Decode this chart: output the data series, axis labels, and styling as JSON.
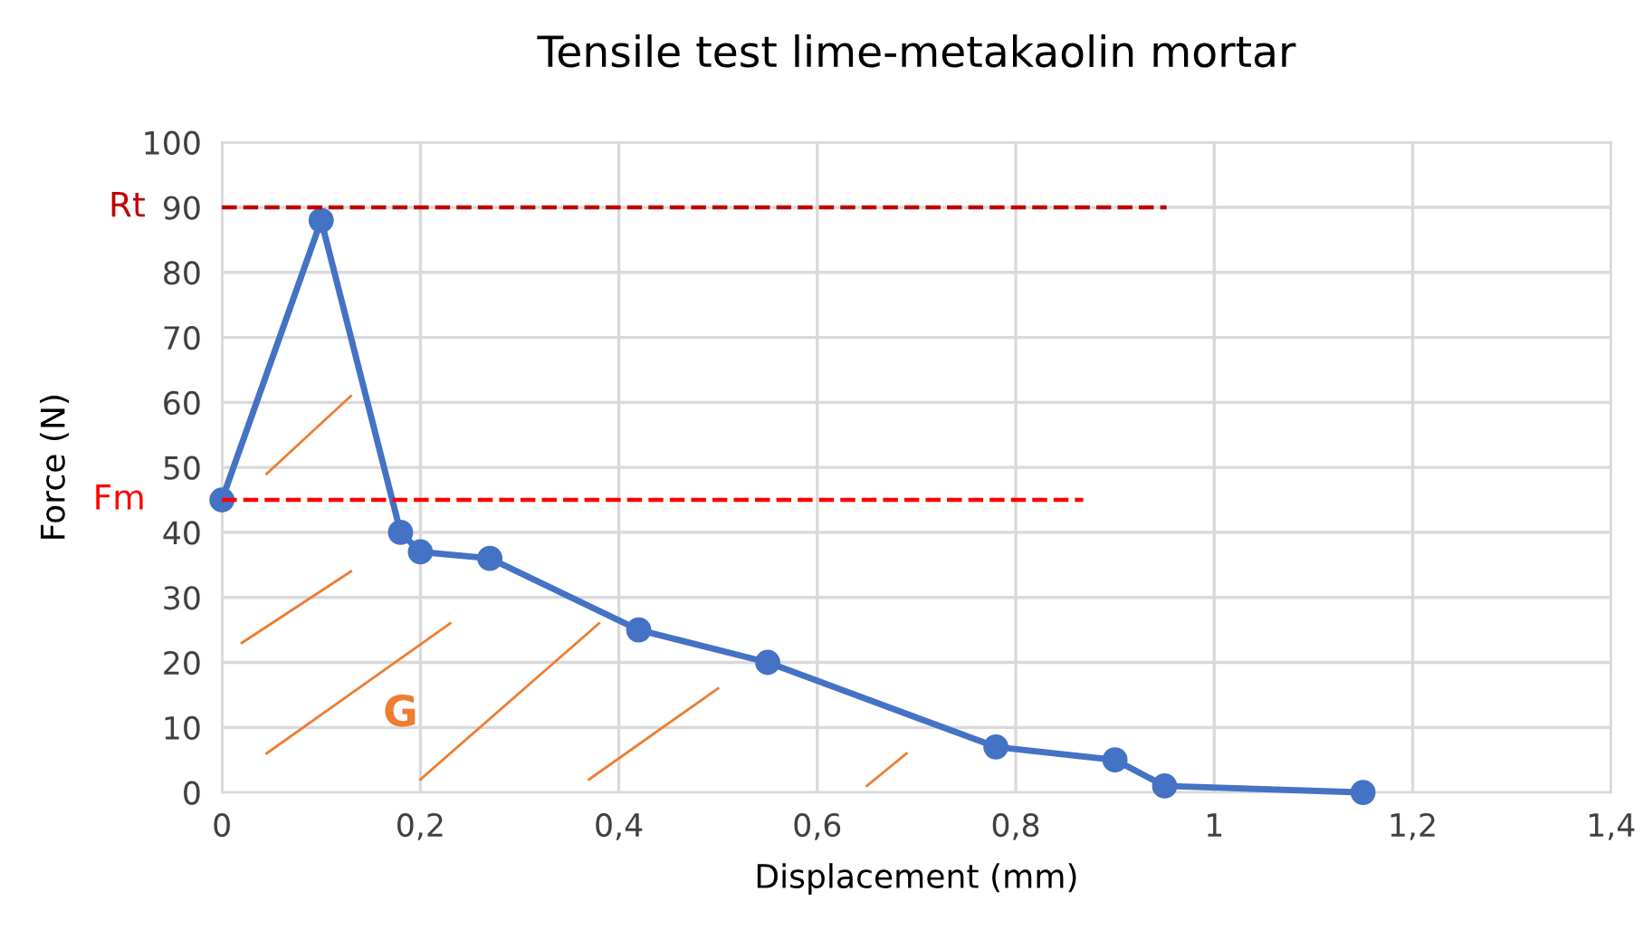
{
  "chart_data": {
    "type": "line",
    "title": "Tensile test lime-metakaolin mortar",
    "xlabel": "Displacement (mm)",
    "ylabel": "Force (N)",
    "x": [
      0,
      0.1,
      0.18,
      0.2,
      0.27,
      0.42,
      0.55,
      0.78,
      0.9,
      0.95,
      1.15
    ],
    "series": [
      {
        "color": "#4472c4",
        "values": [
          45,
          88,
          40,
          37,
          36,
          25,
          20,
          7,
          5,
          1,
          0
        ]
      }
    ],
    "xlim": [
      0,
      1.4
    ],
    "xticks": [
      0,
      {
        "value": 0.2,
        "label": "0,2"
      },
      {
        "value": 0.4,
        "label": "0,4"
      },
      {
        "value": 0.6,
        "label": "0,6"
      },
      {
        "value": 0.8,
        "label": "0,8"
      },
      1,
      {
        "value": 1.2,
        "label": "1,2"
      },
      {
        "value": 1.4,
        "label": "1,4"
      }
    ],
    "ylim": [
      0,
      100
    ],
    "yticks": [
      0,
      10,
      20,
      30,
      40,
      50,
      60,
      70,
      80,
      90,
      100
    ],
    "ref_lines": [
      {
        "axis": "y",
        "value": 90,
        "label": "Rt",
        "color": "#c00000",
        "line_style": "dashed"
      },
      {
        "axis": "y",
        "value": 45,
        "label": "Fm",
        "color": "#ff0000",
        "line_style": "dashed"
      }
    ],
    "annotations": [
      "G"
    ],
    "grid": true,
    "marker": "circle",
    "line_style": "solid"
  }
}
